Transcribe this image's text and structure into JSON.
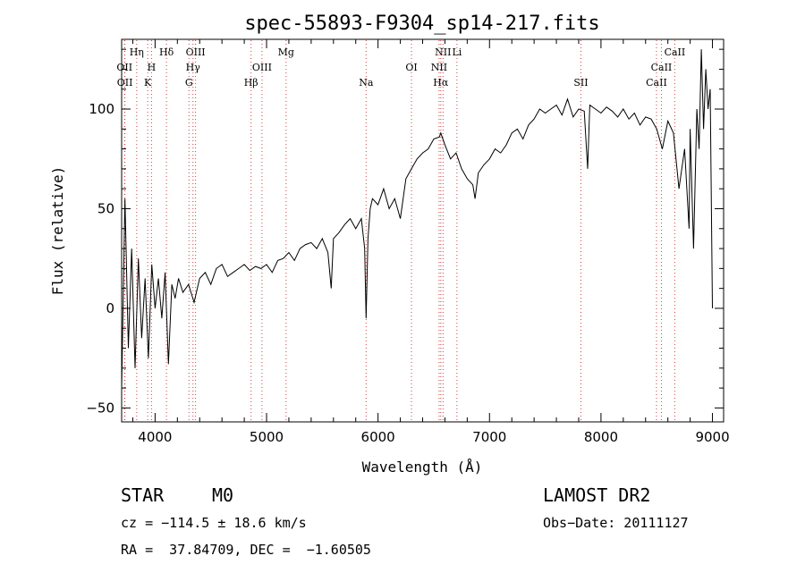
{
  "chart_data": {
    "type": "line",
    "title": "spec-55893-F9304_sp14-217.fits",
    "xlabel": "Wavelength (Å)",
    "ylabel": "Flux (relative)",
    "xlim": [
      3700,
      9100
    ],
    "ylim": [
      -57,
      135
    ],
    "xticks": [
      4000,
      5000,
      6000,
      7000,
      8000,
      9000
    ],
    "yticks": [
      -50,
      0,
      50,
      100
    ],
    "grid": false,
    "line_color": "#000000",
    "marker_color": "#d04040",
    "series": [
      {
        "x": [
          3700,
          3730,
          3760,
          3790,
          3820,
          3850,
          3880,
          3910,
          3940,
          3970,
          4000,
          4030,
          4060,
          4090,
          4120,
          4150,
          4180,
          4210,
          4250,
          4300,
          4350,
          4400,
          4450,
          4500,
          4550,
          4600,
          4650,
          4700,
          4750,
          4800,
          4850,
          4900,
          4950,
          5000,
          5050,
          5100,
          5150,
          5200,
          5250,
          5300,
          5350,
          5400,
          5450,
          5500,
          5550,
          5580,
          5600,
          5650,
          5700,
          5750,
          5800,
          5850,
          5880,
          5893,
          5910,
          5930,
          5950,
          6000,
          6050,
          6100,
          6150,
          6200,
          6250,
          6300,
          6350,
          6400,
          6450,
          6500,
          6550,
          6563,
          6600,
          6650,
          6700,
          6750,
          6800,
          6850,
          6870,
          6900,
          6950,
          7000,
          7050,
          7100,
          7150,
          7200,
          7250,
          7300,
          7350,
          7400,
          7450,
          7500,
          7550,
          7600,
          7650,
          7700,
          7750,
          7800,
          7850,
          7880,
          7900,
          7950,
          8000,
          8050,
          8100,
          8150,
          8200,
          8250,
          8300,
          8350,
          8400,
          8450,
          8500,
          8550,
          8600,
          8650,
          8700,
          8750,
          8790,
          8800,
          8830,
          8860,
          8880,
          8900,
          8920,
          8940,
          8960,
          8980,
          9000
        ],
        "values": [
          -40,
          55,
          -20,
          30,
          -30,
          25,
          -15,
          15,
          -25,
          22,
          0,
          15,
          -5,
          18,
          -28,
          12,
          5,
          15,
          8,
          12,
          3,
          15,
          18,
          12,
          20,
          22,
          16,
          18,
          20,
          22,
          19,
          21,
          20,
          22,
          18,
          24,
          25,
          28,
          24,
          30,
          32,
          33,
          30,
          35,
          28,
          10,
          35,
          38,
          42,
          45,
          40,
          45,
          30,
          -5,
          35,
          50,
          55,
          52,
          60,
          50,
          55,
          45,
          65,
          70,
          75,
          78,
          80,
          85,
          86,
          88,
          82,
          75,
          78,
          70,
          65,
          62,
          55,
          68,
          72,
          75,
          80,
          78,
          82,
          88,
          90,
          85,
          92,
          95,
          100,
          98,
          100,
          102,
          97,
          105,
          96,
          100,
          99,
          70,
          102,
          100,
          98,
          101,
          99,
          96,
          100,
          95,
          98,
          92,
          96,
          95,
          90,
          80,
          94,
          88,
          60,
          80,
          40,
          90,
          30,
          100,
          80,
          130,
          90,
          120,
          100,
          110,
          0
        ]
      }
    ],
    "line_markers": [
      {
        "label": "Hη",
        "x": 3835,
        "row": 0
      },
      {
        "label": "Hδ",
        "x": 4102,
        "row": 0
      },
      {
        "label": "OIII",
        "x": 4363,
        "row": 0
      },
      {
        "label": "Mg",
        "x": 5175,
        "row": 0
      },
      {
        "label": "NII",
        "x": 6583,
        "row": 0
      },
      {
        "label": "Li",
        "x": 6708,
        "row": 0
      },
      {
        "label": "CaII",
        "x": 8662,
        "row": 0
      },
      {
        "label": "OII",
        "x": 3726,
        "row": 1
      },
      {
        "label": "H",
        "x": 3968,
        "row": 1
      },
      {
        "label": "Hγ",
        "x": 4340,
        "row": 1
      },
      {
        "label": "OIII",
        "x": 4959,
        "row": 1
      },
      {
        "label": "OI",
        "x": 6300,
        "row": 1
      },
      {
        "label": "NII",
        "x": 6548,
        "row": 1
      },
      {
        "label": "CaII",
        "x": 8542,
        "row": 1
      },
      {
        "label": "OII",
        "x": 3729,
        "row": 2
      },
      {
        "label": "K",
        "x": 3934,
        "row": 2
      },
      {
        "label": "G",
        "x": 4304,
        "row": 2
      },
      {
        "label": "Hβ",
        "x": 4861,
        "row": 2
      },
      {
        "label": "Na",
        "x": 5893,
        "row": 2
      },
      {
        "label": "Hα",
        "x": 6563,
        "row": 2
      },
      {
        "label": "SII",
        "x": 7820,
        "row": 2
      },
      {
        "label": "CaII",
        "x": 8498,
        "row": 2
      }
    ]
  },
  "info": {
    "class": "STAR",
    "subclass": "M0",
    "survey": "LAMOST DR2",
    "cz": "cz = −114.5 ± 18.6 km/s",
    "obs_date": "Obs−Date: 20111127",
    "coords": "RA =  37.84709, DEC =  −1.60505"
  }
}
